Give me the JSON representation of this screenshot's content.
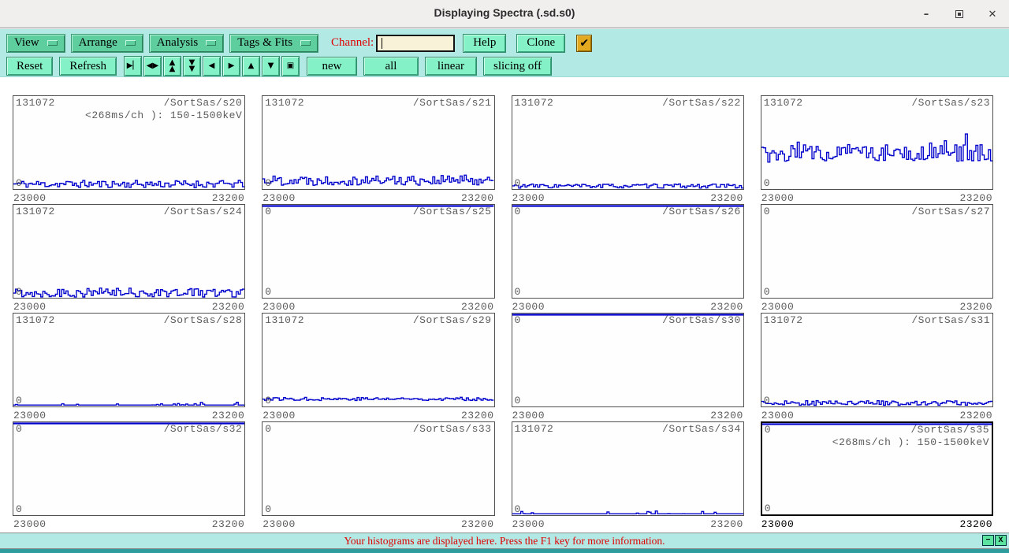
{
  "window": {
    "title": "Displaying Spectra (.sd.s0)",
    "controls": {
      "minimize": "–",
      "close": "✕"
    }
  },
  "menubar": {
    "menus": [
      {
        "label": "View"
      },
      {
        "label": "Arrange"
      },
      {
        "label": "Analysis"
      },
      {
        "label": "Tags & Fits"
      }
    ],
    "channel_label": "Channel:",
    "channel_value": "",
    "help_label": "Help",
    "clone_label": "Clone",
    "checkbox_checked": true,
    "checkbox_glyph": "✔"
  },
  "toolbar": {
    "reset_label": "Reset",
    "refresh_label": "Refresh",
    "nav_icons": [
      {
        "name": "x-zoom-in-icon",
        "glyph": "▶▏"
      },
      {
        "name": "x-zoom-out-icon",
        "glyph": "◀▶"
      },
      {
        "name": "y-expand-icon",
        "glyph": "▲\n▲"
      },
      {
        "name": "y-shrink-icon",
        "glyph": "▼\n▼"
      },
      {
        "name": "scroll-left-icon",
        "glyph": "◀"
      },
      {
        "name": "scroll-right-icon",
        "glyph": "▶"
      },
      {
        "name": "scroll-up-icon",
        "glyph": "▲"
      },
      {
        "name": "scroll-down-icon",
        "glyph": "▼"
      },
      {
        "name": "full-view-icon",
        "glyph": "▣"
      }
    ],
    "new_label": "new",
    "all_label": "all",
    "linear_label": "linear",
    "slicing_label": "slicing off"
  },
  "status": {
    "message": "Your histograms are displayed here. Press the F1 key for more information.",
    "minimize_label": "−",
    "close_label": "X"
  },
  "colors": {
    "toolbar_bg": "#b2e9e5",
    "menu_button_green": "#5fce9f",
    "action_button_aqua": "#84f1c7",
    "checkbox_gold": "#e2a81f",
    "trace_blue": "#0000cd",
    "red_text": "#e00000",
    "panel_text_gray": "#5c5c5c",
    "input_cream": "#f8f2d8",
    "bottom_strip_teal": "#2f9d9d"
  },
  "chart_data": {
    "type": "histogram-grid",
    "x_range": [
      23000,
      23200
    ],
    "note": "16 spectrum panels; traces are noisy count histograms read qualitatively (base = baseline as fraction of panel height from bottom, amp = noise amplitude fraction).",
    "panels": [
      {
        "name": "/SortSas/s20",
        "ymax_label": "131072",
        "ymin_label": "0",
        "sub_label": "<268ms/ch ): 150-1500keV",
        "x_min": "23000",
        "x_max": "23200",
        "active": false,
        "trace": {
          "kind": "noise",
          "base": 0.05,
          "amp": 0.08,
          "seed": 11
        }
      },
      {
        "name": "/SortSas/s21",
        "ymax_label": "131072",
        "ymin_label": "0",
        "sub_label": "",
        "x_min": "23000",
        "x_max": "23200",
        "active": false,
        "trace": {
          "kind": "noise",
          "base": 0.09,
          "amp": 0.11,
          "seed": 22
        }
      },
      {
        "name": "/SortSas/s22",
        "ymax_label": "131072",
        "ymin_label": "0",
        "sub_label": "",
        "x_min": "23000",
        "x_max": "23200",
        "active": false,
        "trace": {
          "kind": "noise",
          "base": 0.03,
          "amp": 0.045,
          "seed": 33
        }
      },
      {
        "name": "/SortSas/s23",
        "ymax_label": "131072",
        "ymin_label": "0",
        "sub_label": "",
        "x_min": "23000",
        "x_max": "23200",
        "active": false,
        "trace": {
          "kind": "spiky",
          "base": 0.38,
          "amp": 0.18,
          "seed": 44
        }
      },
      {
        "name": "/SortSas/s24",
        "ymax_label": "131072",
        "ymin_label": "0",
        "sub_label": "",
        "x_min": "23000",
        "x_max": "23200",
        "active": false,
        "trace": {
          "kind": "noise",
          "base": 0.05,
          "amp": 0.1,
          "seed": 55
        }
      },
      {
        "name": "/SortSas/s25",
        "ymax_label": "0",
        "ymin_label": "0",
        "sub_label": "",
        "x_min": "23000",
        "x_max": "23200",
        "active": false,
        "trace": {
          "kind": "topline"
        }
      },
      {
        "name": "/SortSas/s26",
        "ymax_label": "0",
        "ymin_label": "0",
        "sub_label": "",
        "x_min": "23000",
        "x_max": "23200",
        "active": false,
        "trace": {
          "kind": "topline"
        }
      },
      {
        "name": "/SortSas/s27",
        "ymax_label": "0",
        "ymin_label": "0",
        "sub_label": "",
        "x_min": "23000",
        "x_max": "23200",
        "active": false,
        "trace": {
          "kind": "none"
        }
      },
      {
        "name": "/SortSas/s28",
        "ymax_label": "131072",
        "ymin_label": "0",
        "sub_label": "",
        "x_min": "23000",
        "x_max": "23200",
        "active": false,
        "trace": {
          "kind": "blips",
          "base": 0.015,
          "amp": 0.03,
          "seed": 66
        }
      },
      {
        "name": "/SortSas/s29",
        "ymax_label": "131072",
        "ymin_label": "0",
        "sub_label": "",
        "x_min": "23000",
        "x_max": "23200",
        "active": false,
        "trace": {
          "kind": "noise",
          "base": 0.08,
          "amp": 0.035,
          "seed": 77
        }
      },
      {
        "name": "/SortSas/s30",
        "ymax_label": "0",
        "ymin_label": "0",
        "sub_label": "",
        "x_min": "23000",
        "x_max": "23200",
        "active": false,
        "trace": {
          "kind": "topline"
        }
      },
      {
        "name": "/SortSas/s31",
        "ymax_label": "131072",
        "ymin_label": "0",
        "sub_label": "",
        "x_min": "23000",
        "x_max": "23200",
        "active": false,
        "trace": {
          "kind": "noise",
          "base": 0.035,
          "amp": 0.05,
          "seed": 88
        }
      },
      {
        "name": "/SortSas/s32",
        "ymax_label": "0",
        "ymin_label": "0",
        "sub_label": "",
        "x_min": "23000",
        "x_max": "23200",
        "active": false,
        "trace": {
          "kind": "topline"
        }
      },
      {
        "name": "/SortSas/s33",
        "ymax_label": "0",
        "ymin_label": "0",
        "sub_label": "",
        "x_min": "23000",
        "x_max": "23200",
        "active": false,
        "trace": {
          "kind": "none"
        }
      },
      {
        "name": "/SortSas/s34",
        "ymax_label": "131072",
        "ymin_label": "0",
        "sub_label": "",
        "x_min": "23000",
        "x_max": "23200",
        "active": false,
        "trace": {
          "kind": "blips",
          "base": 0.015,
          "amp": 0.03,
          "seed": 99
        }
      },
      {
        "name": "/SortSas/s35",
        "ymax_label": "0",
        "ymin_label": "0",
        "sub_label": "<268ms/ch ): 150-1500keV",
        "x_min": "23000",
        "x_max": "23200",
        "active": true,
        "trace": {
          "kind": "topline"
        }
      }
    ]
  }
}
